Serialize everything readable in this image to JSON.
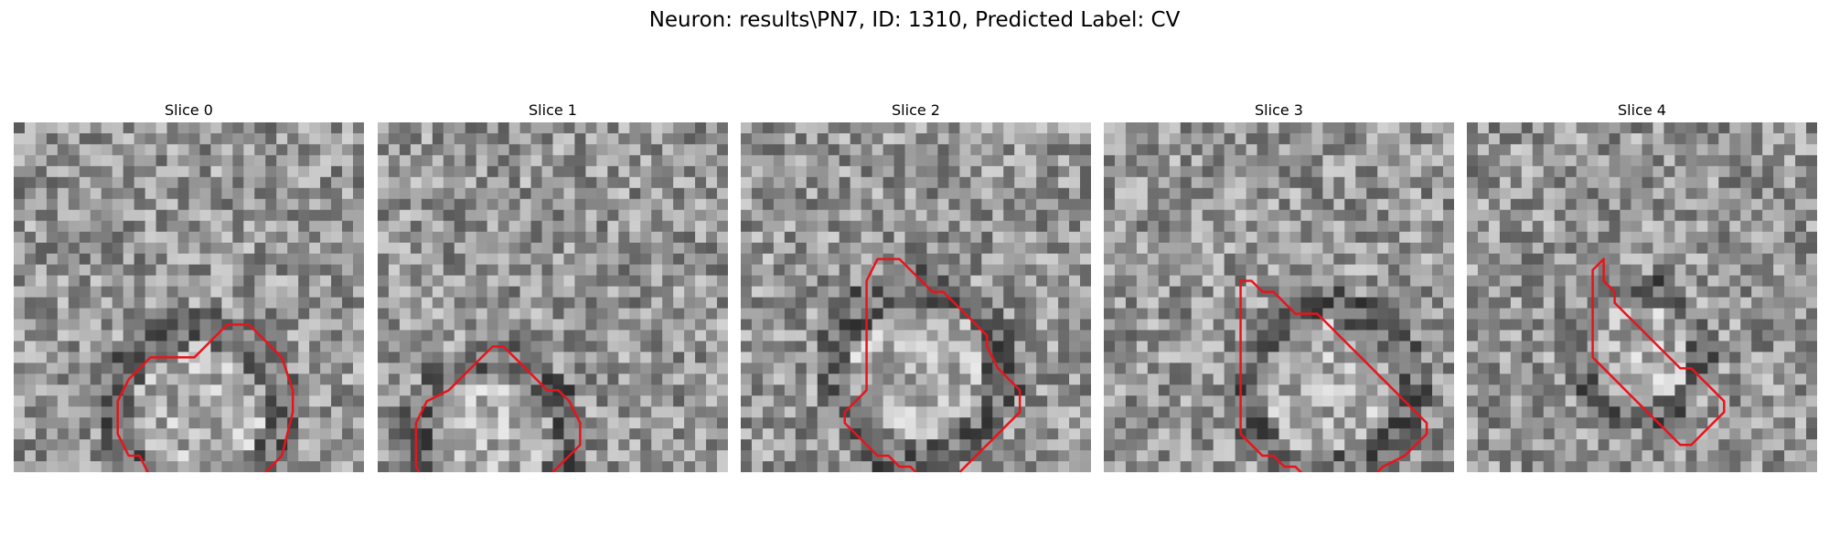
{
  "figure": {
    "suptitle": "Neuron: results\\PN7, ID: 1310, Predicted Label: CV"
  },
  "panels": [
    {
      "title": "Slice 0",
      "seed": 11,
      "contour_color": "#e8141b",
      "contour_cells": [
        [
          21,
          13
        ],
        [
          21,
          14
        ],
        [
          21,
          15
        ],
        [
          21,
          16
        ],
        [
          20,
          17
        ],
        [
          19,
          18
        ],
        [
          18,
          19
        ],
        [
          18,
          21
        ],
        [
          19,
          22
        ],
        [
          20,
          23
        ],
        [
          21,
          24
        ],
        [
          24,
          25
        ],
        [
          26,
          25
        ],
        [
          30,
          24
        ],
        [
          31,
          23
        ],
        [
          32,
          22
        ],
        [
          34,
          21
        ],
        [
          36,
          20
        ],
        [
          37,
          19
        ],
        [
          37,
          17
        ],
        [
          35,
          16
        ],
        [
          33,
          15
        ],
        [
          33,
          13
        ],
        [
          32,
          12
        ],
        [
          30,
          11
        ],
        [
          30,
          10
        ],
        [
          28,
          9
        ],
        [
          25,
          9
        ],
        [
          23,
          10
        ],
        [
          22,
          11
        ],
        [
          21,
          12
        ]
      ]
    },
    {
      "title": "Slice 1",
      "seed": 23,
      "contour_color": "#e8141b",
      "contour_cells": [
        [
          20,
          10
        ],
        [
          20,
          11
        ],
        [
          21,
          12
        ],
        [
          22,
          13
        ],
        [
          23,
          14
        ],
        [
          24,
          15
        ],
        [
          24,
          16
        ],
        [
          25,
          17
        ],
        [
          27,
          18
        ],
        [
          29,
          18
        ],
        [
          30,
          17
        ],
        [
          31,
          16
        ],
        [
          32,
          15
        ],
        [
          33,
          14
        ],
        [
          34,
          13
        ],
        [
          35,
          12
        ],
        [
          36,
          11
        ],
        [
          37,
          10
        ],
        [
          38,
          9
        ],
        [
          38,
          7
        ],
        [
          37,
          6
        ],
        [
          36,
          5
        ],
        [
          35,
          5
        ],
        [
          33,
          4
        ],
        [
          31,
          3
        ],
        [
          29,
          3
        ],
        [
          27,
          3
        ],
        [
          25,
          4
        ],
        [
          24,
          6
        ],
        [
          23,
          7
        ],
        [
          22,
          8
        ],
        [
          21,
          9
        ]
      ]
    },
    {
      "title": "Slice 2",
      "seed": 37,
      "contour_color": "#e8141b",
      "contour_cells": [
        [
          12,
          12
        ],
        [
          12,
          13
        ],
        [
          12,
          14
        ],
        [
          13,
          15
        ],
        [
          14,
          16
        ],
        [
          15,
          17
        ],
        [
          15,
          18
        ],
        [
          16,
          19
        ],
        [
          17,
          20
        ],
        [
          18,
          21
        ],
        [
          19,
          22
        ],
        [
          20,
          22
        ],
        [
          22,
          23
        ],
        [
          23,
          24
        ],
        [
          24,
          25
        ],
        [
          25,
          25
        ],
        [
          26,
          25
        ],
        [
          27,
          24
        ],
        [
          28,
          23
        ],
        [
          29,
          22
        ],
        [
          30,
          21
        ],
        [
          31,
          20
        ],
        [
          32,
          19
        ],
        [
          32,
          18
        ],
        [
          32,
          17
        ],
        [
          32,
          16
        ],
        [
          31,
          15
        ],
        [
          31,
          14
        ],
        [
          30,
          13
        ],
        [
          30,
          12
        ],
        [
          29,
          11
        ],
        [
          28,
          10
        ],
        [
          27,
          9
        ],
        [
          26,
          9
        ],
        [
          25,
          10
        ],
        [
          24,
          11
        ],
        [
          23,
          11
        ],
        [
          22,
          11
        ],
        [
          21,
          11
        ],
        [
          19,
          11
        ],
        [
          17,
          11
        ],
        [
          16,
          11
        ],
        [
          15,
          11
        ],
        [
          14,
          11
        ]
      ]
    },
    {
      "title": "Slice 3",
      "seed": 53,
      "contour_color": "#e8141b",
      "contour_cells": [
        [
          14,
          12
        ],
        [
          14,
          13
        ],
        [
          15,
          14
        ],
        [
          15,
          15
        ],
        [
          16,
          16
        ],
        [
          17,
          17
        ],
        [
          17,
          19
        ],
        [
          18,
          20
        ],
        [
          19,
          21
        ],
        [
          20,
          22
        ],
        [
          21,
          23
        ],
        [
          22,
          24
        ],
        [
          23,
          25
        ],
        [
          24,
          26
        ],
        [
          25,
          27
        ],
        [
          26,
          28
        ],
        [
          27,
          29
        ],
        [
          28,
          29
        ],
        [
          29,
          28
        ],
        [
          30,
          27
        ],
        [
          31,
          25
        ],
        [
          32,
          24
        ],
        [
          32,
          22
        ],
        [
          32,
          20
        ],
        [
          32,
          18
        ],
        [
          31,
          17
        ],
        [
          31,
          16
        ],
        [
          30,
          15
        ],
        [
          30,
          14
        ],
        [
          29,
          13
        ],
        [
          28,
          12
        ]
      ]
    },
    {
      "title": "Slice 4",
      "seed": 71,
      "contour_color": "#e8141b",
      "contour_cells": [
        [
          12,
          12
        ],
        [
          13,
          12
        ],
        [
          14,
          12
        ],
        [
          15,
          13
        ],
        [
          16,
          13
        ],
        [
          17,
          14
        ],
        [
          18,
          15
        ],
        [
          19,
          16
        ],
        [
          20,
          17
        ],
        [
          21,
          18
        ],
        [
          22,
          19
        ],
        [
          22,
          20
        ],
        [
          23,
          21
        ],
        [
          24,
          22
        ],
        [
          25,
          23
        ],
        [
          26,
          23
        ],
        [
          27,
          22
        ],
        [
          28,
          21
        ],
        [
          29,
          20
        ],
        [
          29,
          19
        ],
        [
          28,
          18
        ],
        [
          27,
          17
        ],
        [
          26,
          16
        ],
        [
          25,
          15
        ],
        [
          24,
          14
        ],
        [
          23,
          13
        ],
        [
          22,
          12
        ],
        [
          21,
          11
        ],
        [
          20,
          11
        ],
        [
          18,
          11
        ],
        [
          16,
          11
        ],
        [
          14,
          11
        ],
        [
          13,
          11
        ]
      ]
    }
  ]
}
